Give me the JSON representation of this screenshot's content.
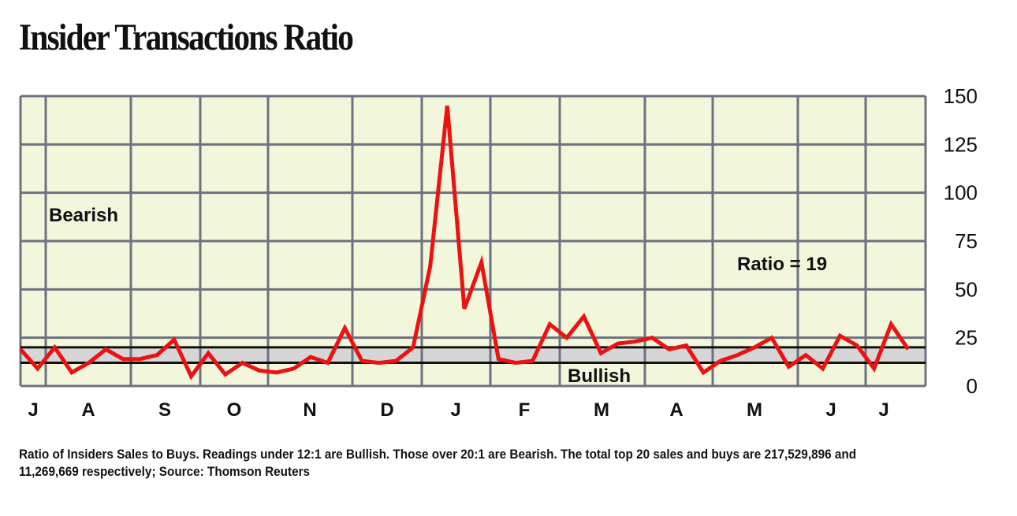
{
  "title": "Insider Transactions Ratio",
  "footnote": "Ratio of Insiders Sales to Buys. Readings under 12:1 are Bullish. Those over 20:1 are Bearish. The total top 20 sales and buys are 217,529,896 and 11,269,669 respectively; Source: Thomson Reuters",
  "colors": {
    "plot_background": "#f2f7dc",
    "grid": "#6c7280",
    "line": "#ee1111",
    "band": "#d6d6d6",
    "threshold": "#111111"
  },
  "chart_data": {
    "type": "line",
    "title": "Insider Transactions Ratio",
    "ylim": [
      0,
      150
    ],
    "yticks": [
      0,
      25,
      50,
      75,
      100,
      125,
      150
    ],
    "y_axis_side": "right",
    "x_month_labels": [
      "J",
      "A",
      "S",
      "O",
      "N",
      "D",
      "J",
      "F",
      "M",
      "A",
      "M",
      "J",
      "J"
    ],
    "thresholds": {
      "bullish_below": 12,
      "bearish_above": 20
    },
    "annotations": {
      "bearish": "Bearish",
      "bullish": "Bullish",
      "ratio": "Ratio = 19"
    },
    "series": [
      {
        "name": "Ratio of Insiders Sales to Buys",
        "values": [
          19,
          9,
          20,
          7,
          12,
          19,
          14,
          14,
          16,
          24,
          5,
          17,
          6,
          12,
          8,
          7,
          9,
          15,
          12,
          30,
          13,
          12,
          13,
          20,
          62,
          145,
          40,
          64,
          14,
          12,
          13,
          32,
          25,
          36,
          17,
          22,
          23,
          25,
          19,
          21,
          7,
          13,
          16,
          20,
          25,
          10,
          16,
          9,
          26,
          21,
          9,
          32,
          19
        ]
      }
    ]
  }
}
